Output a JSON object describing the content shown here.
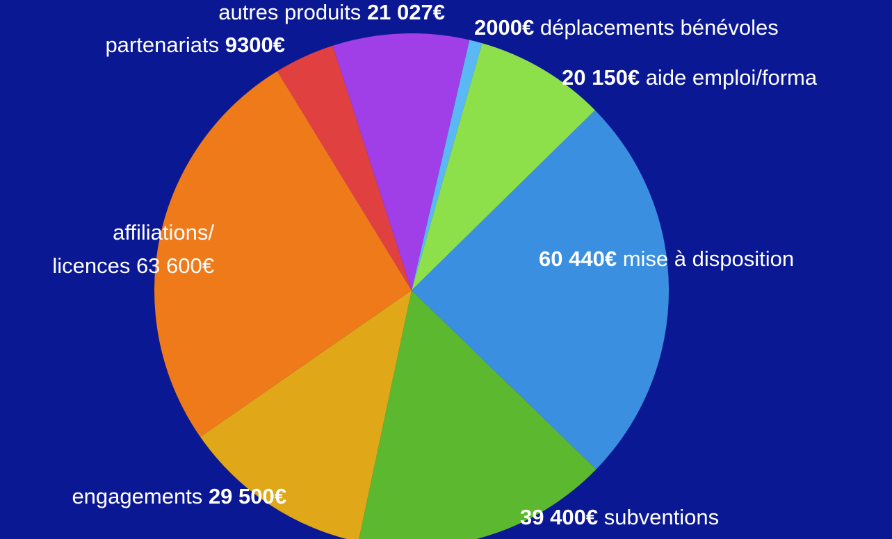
{
  "chart_data": {
    "type": "pie",
    "categories": [
      "déplacements bénévoles",
      "aide emploi/forma",
      "mise à disposition",
      "subventions",
      "engagements",
      "affiliations/ licences",
      "partenariats",
      "autres produits"
    ],
    "values": [
      2000,
      20150,
      60440,
      39400,
      29500,
      63600,
      9300,
      21027
    ],
    "value_labels": [
      "2000€",
      "20 150€",
      "60 440€",
      "39 400€",
      "29 500€",
      "63 600€",
      "9300€",
      "21 027€"
    ],
    "colors": [
      "#5ab8f5",
      "#8ee04a",
      "#3a8fe0",
      "#5cb82e",
      "#e0a818",
      "#ef7a1a",
      "#e04040",
      "#a03ee8"
    ]
  }
}
